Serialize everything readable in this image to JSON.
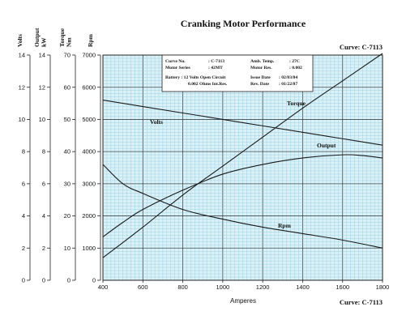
{
  "chart_data": {
    "type": "line",
    "title": "Cranking Motor Performance",
    "curve_label_top": "Curve: C-7113",
    "curve_label_bottom": "Curve: C-7113",
    "xlabel": "Amperes",
    "x_ticks": [
      400,
      600,
      800,
      1000,
      1200,
      1400,
      1600,
      1800
    ],
    "xlim": [
      400,
      1800
    ],
    "grid": true,
    "axes": [
      {
        "name": "Volts",
        "ticks": [
          0,
          2,
          4,
          6,
          8,
          10,
          12,
          14
        ],
        "range": [
          0,
          14
        ]
      },
      {
        "name": "Output kW",
        "ticks": [
          0,
          2,
          4,
          6,
          8,
          10,
          12,
          14
        ],
        "range": [
          0,
          14
        ]
      },
      {
        "name": "Torque Nm",
        "ticks": [
          0,
          10,
          20,
          30,
          40,
          50,
          60,
          70
        ],
        "range": [
          0,
          70
        ]
      },
      {
        "name": "Rpm",
        "ticks": [
          0,
          1000,
          2000,
          3000,
          4000,
          5000,
          6000,
          7000
        ],
        "range": [
          0,
          7000
        ]
      }
    ],
    "series": [
      {
        "name": "Volts",
        "axis": "Volts",
        "x": [
          400,
          600,
          800,
          1000,
          1200,
          1400,
          1600,
          1800
        ],
        "y": [
          11.2,
          10.8,
          10.4,
          10.0,
          9.6,
          9.2,
          8.8,
          8.4
        ]
      },
      {
        "name": "Torque",
        "axis": "Torque Nm",
        "x": [
          400,
          600,
          800,
          1000,
          1200,
          1400,
          1600,
          1800
        ],
        "y": [
          7,
          16.5,
          26.5,
          35.5,
          44.5,
          53.5,
          62,
          70.5
        ]
      },
      {
        "name": "Output",
        "axis": "Output kW",
        "x": [
          400,
          500,
          600,
          800,
          1000,
          1200,
          1400,
          1600,
          1700,
          1800
        ],
        "y": [
          2.7,
          3.6,
          4.4,
          5.6,
          6.6,
          7.2,
          7.6,
          7.8,
          7.75,
          7.6
        ]
      },
      {
        "name": "Rpm",
        "axis": "Rpm",
        "x": [
          400,
          500,
          600,
          800,
          1000,
          1200,
          1400,
          1600,
          1800
        ],
        "y": [
          3600,
          3000,
          2700,
          2200,
          1900,
          1650,
          1450,
          1250,
          1000
        ]
      }
    ]
  },
  "info_box": {
    "curve_no_label": "Curve No.",
    "curve_no_value": ": C-7113",
    "motor_series_label": "Motor Series",
    "motor_series_value": ": 42MT",
    "amb_temp_label": "Amb. Temp.",
    "amb_temp_value": ": 27C",
    "motor_res_label": "Motor Res.",
    "motor_res_value": ": 0.002",
    "battery_line": "Battery : 12 Volts Open Circuit",
    "int_res_line": "0.002 Ohms Int.Res.",
    "issue_date_label": "Issue Date",
    "issue_date_value": ": 02/03/84",
    "rev_date_label": "Rev. Date",
    "rev_date_value": ": 01/22/87"
  },
  "colors": {
    "plot_bg": "#dcf1f6",
    "minor_grid": "#7ec6e4",
    "major_grid": "#3a4a52",
    "curve": "#1a1a1a"
  }
}
